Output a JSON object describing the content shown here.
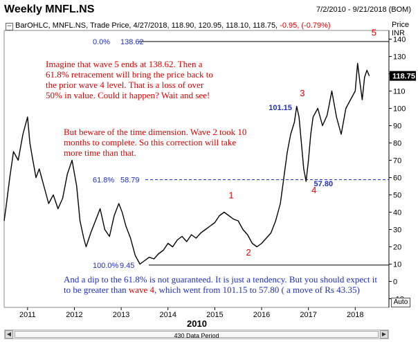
{
  "window": {
    "title": "Weekly MNFL.NS",
    "date_range": "7/2/2010 - 9/21/2018 (BOM)"
  },
  "header": {
    "symbol_line": "BarOHLC, MNFL.NS, Trade Price, 4/27/2018, 118.90, 120.95, 118.10, 118.75,",
    "change": "-0.95, (-0.79%)"
  },
  "axis": {
    "price_label_1": "Price",
    "price_label_2": "INR",
    "current_price": "118.75",
    "auto_button": "Auto",
    "year_label": "2010",
    "scrollbar_label": "430 Data Period"
  },
  "annotations": {
    "main_note": "Imagine that wave 5 ends at 138.62. Then a 61.8% retracement will bring the price back to the prior wave 4 level. That is a loss of over 50% in value. Could it happen? Wait and see!",
    "dim_note": "But beware of the time dimension. Wave 2 took 10 months to complete. So this correction will take more time than that.",
    "bottom_note_1": "And a dip to the 61.8% is not guaranteed. It is just a tendency. But you should expect it to be greater than",
    "bottom_note_wave": "wave 4",
    "bottom_note_2": ", which went from 101.15 to 57.80 ( a move of Rs 43.35)"
  },
  "colors": {
    "price_line": "#000000",
    "fib_line": "#1f2fc4",
    "wave_label": "#e00000",
    "fib_text": "#1f2fc4",
    "price_box": "#000000"
  },
  "chart_data": {
    "type": "line",
    "title": "Weekly MNFL.NS",
    "xlabel": "",
    "ylabel": "Price INR",
    "x_ticks": [
      "2011",
      "2012",
      "2013",
      "2014",
      "2015",
      "2016",
      "2017",
      "2018"
    ],
    "y_ticks": [
      -10,
      0,
      10,
      20,
      30,
      40,
      50,
      60,
      70,
      80,
      90,
      100,
      110,
      120,
      130,
      140
    ],
    "ylim": [
      -15,
      145
    ],
    "xlim": [
      2010.5,
      2018.72
    ],
    "series": [
      {
        "x": [
          2010.5,
          2010.55,
          2010.62,
          2010.7,
          2010.8,
          2010.9,
          2011.0,
          2011.05,
          2011.1,
          2011.18,
          2011.25,
          2011.35,
          2011.45,
          2011.55,
          2011.65,
          2011.75,
          2011.85,
          2011.95,
          2012.05,
          2012.12,
          2012.2,
          2012.25,
          2012.35,
          2012.45,
          2012.55,
          2012.65,
          2012.75,
          2012.85,
          2012.95,
          2013.02,
          2013.1,
          2013.2,
          2013.3,
          2013.4,
          2013.5,
          2013.6,
          2013.7,
          2013.8,
          2013.9,
          2014.0,
          2014.1,
          2014.2,
          2014.3,
          2014.4,
          2014.5,
          2014.6,
          2014.7,
          2014.8,
          2014.9,
          2015.0,
          2015.1,
          2015.2,
          2015.3,
          2015.4,
          2015.5,
          2015.6,
          2015.7,
          2015.8,
          2015.9,
          2016.0,
          2016.1,
          2016.2,
          2016.3,
          2016.4,
          2016.45,
          2016.5,
          2016.55,
          2016.62,
          2016.7,
          2016.75,
          2016.8,
          2016.85,
          2016.9,
          2016.95,
          2017.0,
          2017.05,
          2017.1,
          2017.2,
          2017.3,
          2017.4,
          2017.5,
          2017.6,
          2017.7,
          2017.8,
          2017.9,
          2018.0,
          2018.05,
          2018.1,
          2018.15,
          2018.2,
          2018.25,
          2018.3
        ],
        "y": [
          35,
          45,
          60,
          75,
          70,
          85,
          95,
          80,
          72,
          60,
          65,
          55,
          45,
          50,
          42,
          48,
          62,
          70,
          55,
          35,
          25,
          20,
          28,
          35,
          42,
          30,
          26,
          38,
          45,
          40,
          32,
          25,
          15,
          10,
          12,
          14,
          13,
          16,
          18,
          22,
          20,
          24,
          26,
          23,
          27,
          25,
          28,
          30,
          32,
          34,
          38,
          40,
          38,
          36,
          35,
          30,
          27,
          22,
          20,
          22,
          25,
          28,
          35,
          45,
          55,
          65,
          75,
          85,
          92,
          101.15,
          95,
          80,
          65,
          57.8,
          70,
          85,
          95,
          100,
          90,
          96,
          110,
          95,
          85,
          100,
          105,
          110,
          126,
          115,
          105,
          118,
          122,
          118.75
        ]
      }
    ],
    "fib_levels": [
      {
        "pct_label": "0.0%",
        "value_label": "138.62",
        "value": 138.62
      },
      {
        "pct_label": "61.8%",
        "value_label": "58.79",
        "value": 58.79
      },
      {
        "pct_label": "100.0%",
        "value_label": "9.45",
        "value": 9.45
      }
    ],
    "wave_labels": [
      {
        "text": "1",
        "x": 2015.35,
        "y": 48
      },
      {
        "text": "2",
        "x": 2015.72,
        "y": 15
      },
      {
        "text": "3",
        "x": 2016.87,
        "y": 107
      },
      {
        "text": "4",
        "x": 2017.12,
        "y": 51
      },
      {
        "text": "5",
        "x": 2018.4,
        "y": 142
      }
    ],
    "point_labels": [
      {
        "text": "101.15",
        "x": 2016.4,
        "y": 99
      },
      {
        "text": "57.80",
        "x": 2017.32,
        "y": 55
      }
    ]
  }
}
